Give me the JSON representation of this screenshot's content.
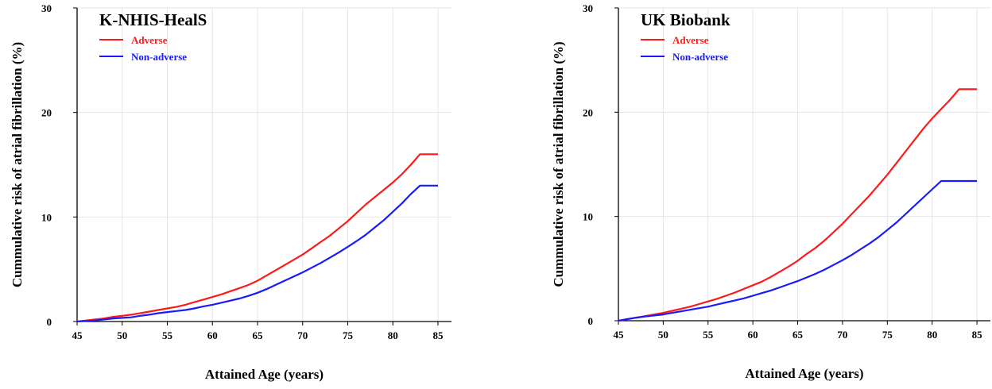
{
  "chart_data": [
    {
      "type": "line",
      "title": "K-NHIS-HealS",
      "xlabel": "Attained Age (years)",
      "ylabel": "Cummulative risk of atrial fibrillation (%)",
      "xlim": [
        45,
        86.5
      ],
      "ylim": [
        0,
        30
      ],
      "xticks": [
        "45",
        "50",
        "55",
        "60",
        "65",
        "70",
        "75",
        "80",
        "85"
      ],
      "yticks": [
        "0",
        "10",
        "20",
        "30"
      ],
      "grid": true,
      "legend_position": "top-left",
      "series": [
        {
          "name": "Adverse",
          "color": "#ff1a1a",
          "x": [
            45,
            46,
            47,
            48,
            49,
            50,
            51,
            52,
            53,
            54,
            55,
            56,
            57,
            58,
            59,
            60,
            61,
            62,
            63,
            64,
            65,
            66,
            67,
            68,
            69,
            70,
            71,
            72,
            73,
            74,
            75,
            76,
            77,
            78,
            79,
            80,
            81,
            82,
            83,
            84,
            85
          ],
          "y": [
            0,
            0.1,
            0.2,
            0.3,
            0.45,
            0.55,
            0.65,
            0.8,
            0.95,
            1.1,
            1.25,
            1.4,
            1.6,
            1.85,
            2.1,
            2.35,
            2.6,
            2.9,
            3.2,
            3.5,
            3.9,
            4.4,
            4.9,
            5.4,
            5.9,
            6.4,
            7.0,
            7.6,
            8.2,
            8.9,
            9.6,
            10.4,
            11.2,
            11.9,
            12.6,
            13.3,
            14.1,
            15.0,
            16.0,
            16.0,
            16.0
          ]
        },
        {
          "name": "Non-adverse",
          "color": "#1a1aff",
          "x": [
            45,
            46,
            47,
            48,
            49,
            50,
            51,
            52,
            53,
            54,
            55,
            56,
            57,
            58,
            59,
            60,
            61,
            62,
            63,
            64,
            65,
            66,
            67,
            68,
            69,
            70,
            71,
            72,
            73,
            74,
            75,
            76,
            77,
            78,
            79,
            80,
            81,
            82,
            83,
            84,
            85
          ],
          "y": [
            0,
            0.05,
            0.1,
            0.2,
            0.3,
            0.35,
            0.4,
            0.55,
            0.65,
            0.8,
            0.9,
            1.0,
            1.1,
            1.25,
            1.45,
            1.6,
            1.8,
            2.0,
            2.2,
            2.45,
            2.75,
            3.1,
            3.5,
            3.9,
            4.3,
            4.7,
            5.15,
            5.6,
            6.1,
            6.6,
            7.15,
            7.7,
            8.3,
            9.0,
            9.7,
            10.5,
            11.3,
            12.2,
            13.0,
            13.0,
            13.0
          ]
        }
      ]
    },
    {
      "type": "line",
      "title": "UK Biobank",
      "xlabel": "Attained Age (years)",
      "ylabel": "Cummulative risk of atrial fibrillation (%)",
      "xlim": [
        45,
        86.5
      ],
      "ylim": [
        0,
        30
      ],
      "xticks": [
        "45",
        "50",
        "55",
        "60",
        "65",
        "70",
        "75",
        "80",
        "85"
      ],
      "yticks": [
        "0",
        "10",
        "20",
        "30"
      ],
      "grid": true,
      "legend_position": "top-left",
      "series": [
        {
          "name": "Adverse",
          "color": "#ff1a1a",
          "x": [
            45,
            46,
            47,
            48,
            49,
            50,
            51,
            52,
            53,
            54,
            55,
            56,
            57,
            58,
            59,
            60,
            61,
            62,
            63,
            64,
            65,
            66,
            67,
            68,
            69,
            70,
            71,
            72,
            73,
            74,
            75,
            76,
            77,
            78,
            79,
            80,
            81,
            82,
            83,
            84,
            85
          ],
          "y": [
            0,
            0.15,
            0.3,
            0.45,
            0.6,
            0.75,
            0.95,
            1.15,
            1.35,
            1.6,
            1.85,
            2.1,
            2.4,
            2.7,
            3.05,
            3.4,
            3.75,
            4.2,
            4.7,
            5.2,
            5.75,
            6.4,
            7.0,
            7.7,
            8.5,
            9.3,
            10.2,
            11.1,
            12.0,
            13.0,
            14.0,
            15.1,
            16.2,
            17.3,
            18.4,
            19.4,
            20.3,
            21.2,
            22.2,
            22.2,
            22.2
          ]
        },
        {
          "name": "Non-adverse",
          "color": "#1a1aff",
          "x": [
            45,
            46,
            47,
            48,
            49,
            50,
            51,
            52,
            53,
            54,
            55,
            56,
            57,
            58,
            59,
            60,
            61,
            62,
            63,
            64,
            65,
            66,
            67,
            68,
            69,
            70,
            71,
            72,
            73,
            74,
            75,
            76,
            77,
            78,
            79,
            80,
            81,
            82,
            83,
            84,
            85
          ],
          "y": [
            0,
            0.15,
            0.3,
            0.4,
            0.5,
            0.6,
            0.75,
            0.9,
            1.05,
            1.2,
            1.35,
            1.55,
            1.75,
            1.95,
            2.15,
            2.4,
            2.65,
            2.9,
            3.2,
            3.5,
            3.8,
            4.15,
            4.5,
            4.9,
            5.35,
            5.8,
            6.3,
            6.85,
            7.4,
            8.0,
            8.7,
            9.4,
            10.2,
            11.0,
            11.8,
            12.6,
            13.4,
            13.4,
            13.4,
            13.4,
            13.4
          ]
        }
      ]
    }
  ]
}
